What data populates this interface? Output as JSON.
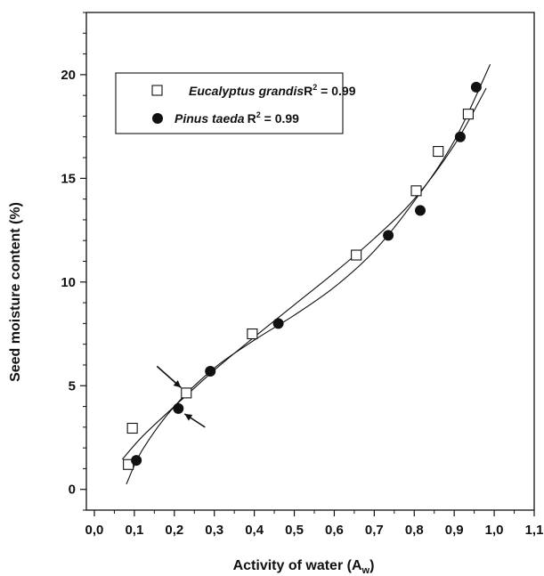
{
  "chart_data": {
    "type": "scatter",
    "xlabel": "Activity of water (A",
    "xlabel_sub": "w",
    "xlabel_close": ")",
    "ylabel": "Seed moisture content (%)",
    "xlim": [
      -0.02,
      1.1
    ],
    "ylim": [
      -1.0,
      23.0
    ],
    "x_ticks": [
      0.0,
      0.1,
      0.2,
      0.3,
      0.4,
      0.5,
      0.6,
      0.7,
      0.8,
      0.9,
      1.0,
      1.1
    ],
    "x_tick_labels": [
      "0,0",
      "0,1",
      "0,2",
      "0,3",
      "0,4",
      "0,5",
      "0,6",
      "0,7",
      "0,8",
      "0,9",
      "1,0",
      "1,1"
    ],
    "y_ticks": [
      0,
      5,
      10,
      15,
      20
    ],
    "y_tick_labels": [
      "0",
      "5",
      "10",
      "15",
      "20"
    ],
    "grid": false,
    "legend_position": "top-left",
    "series": [
      {
        "name": "Eucalyptus grandis",
        "r2_label": "R",
        "r2_sup": "2",
        "r2_value": " = 0.99",
        "marker": "open-square",
        "x": [
          0.085,
          0.095,
          0.23,
          0.395,
          0.655,
          0.805,
          0.86,
          0.935
        ],
        "y": [
          1.2,
          2.95,
          4.65,
          7.5,
          11.3,
          14.4,
          16.3,
          18.1
        ]
      },
      {
        "name": "Pinus taeda",
        "r2_label": "R",
        "r2_sup": "2",
        "r2_value": " = 0.99",
        "marker": "filled-circle",
        "x": [
          0.105,
          0.21,
          0.29,
          0.46,
          0.735,
          0.815,
          0.915,
          0.955
        ],
        "y": [
          1.4,
          3.9,
          5.7,
          8.0,
          12.25,
          13.45,
          17.0,
          19.4
        ]
      }
    ],
    "fit_curves": [
      {
        "series": "Eucalyptus grandis",
        "x": [
          0.07,
          0.12,
          0.2,
          0.3,
          0.4,
          0.5,
          0.6,
          0.7,
          0.8,
          0.9,
          0.98
        ],
        "y": [
          1.45,
          2.55,
          4.0,
          5.75,
          7.35,
          8.9,
          10.45,
          12.1,
          14.0,
          16.6,
          19.35
        ]
      },
      {
        "series": "Pinus taeda",
        "x": [
          0.08,
          0.12,
          0.2,
          0.3,
          0.4,
          0.5,
          0.6,
          0.7,
          0.8,
          0.9,
          0.99
        ],
        "y": [
          0.25,
          1.9,
          4.0,
          5.85,
          7.2,
          8.4,
          9.75,
          11.5,
          13.9,
          16.8,
          20.5
        ]
      }
    ]
  }
}
